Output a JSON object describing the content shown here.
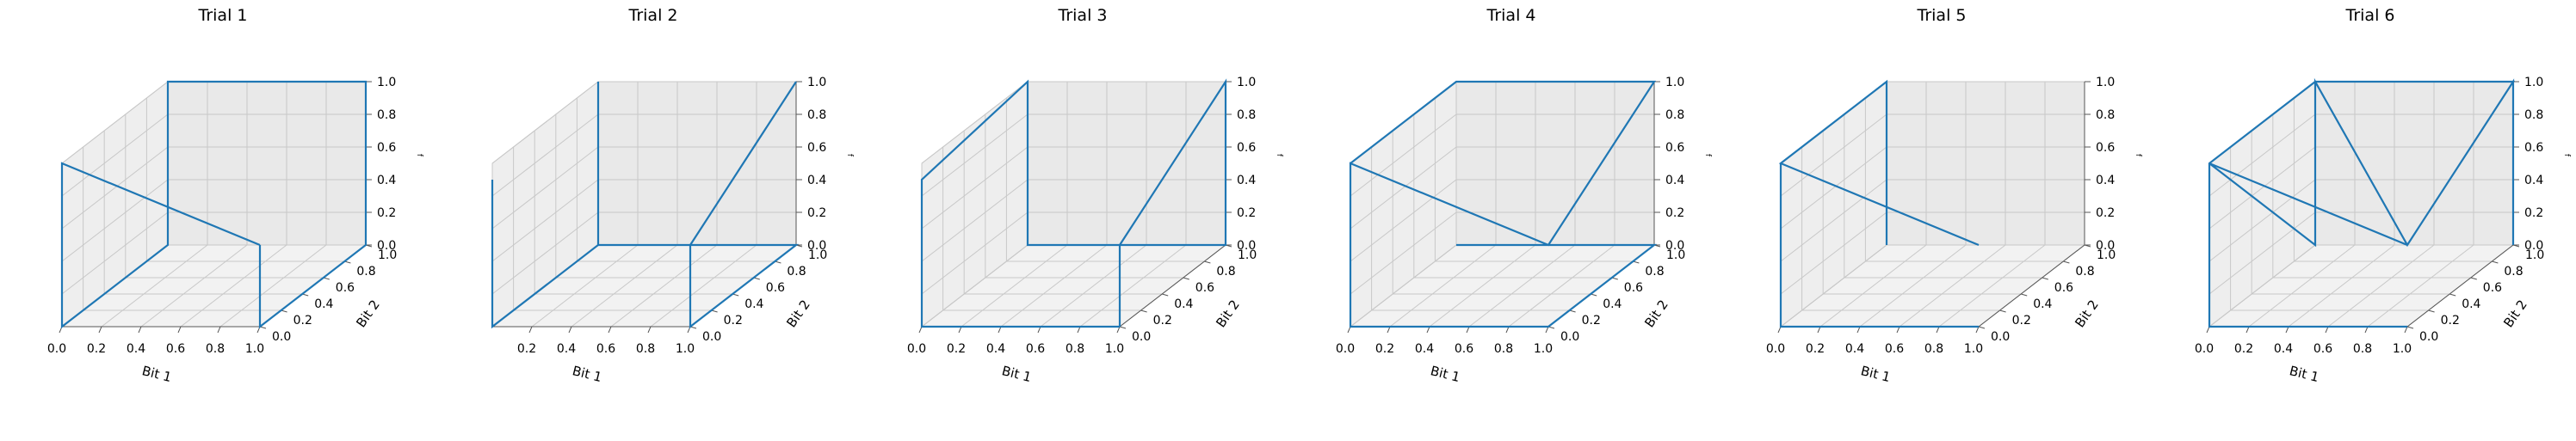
{
  "chart_data": [
    {
      "type": "line3d",
      "title": "Trial 1",
      "xlabel": "Bit 1",
      "ylabel": "Bit 2",
      "zlabel": "f",
      "xlim": [
        0,
        1
      ],
      "ylim": [
        0,
        1
      ],
      "zlim": [
        0,
        1
      ],
      "xticks": [
        "0.0",
        "0.2",
        "0.4",
        "0.6",
        "0.8",
        "1.0"
      ],
      "yticks": [
        "0.0",
        "0.2",
        "0.4",
        "0.6",
        "0.8",
        "1.0"
      ],
      "zticks": [
        "0.0",
        "0.2",
        "0.4",
        "0.6",
        "0.8",
        "1.0"
      ],
      "grid": true,
      "color": "#1f77b4",
      "points": [
        [
          1,
          0,
          0.5
        ],
        [
          1,
          0,
          0
        ],
        [
          1,
          1,
          0
        ],
        [
          1,
          1,
          1
        ],
        [
          0,
          1,
          1
        ],
        [
          0,
          1,
          0
        ],
        [
          0,
          0,
          0
        ],
        [
          0,
          0,
          1
        ],
        [
          1,
          0,
          0.5
        ]
      ]
    },
    {
      "type": "line3d",
      "title": "Trial 2",
      "xlabel": "Bit 1",
      "ylabel": "Bit 2",
      "zlabel": "f",
      "xlim": [
        0,
        1
      ],
      "ylim": [
        0,
        1
      ],
      "zlim": [
        0,
        1
      ],
      "xticks": [
        "0.2",
        "0.4",
        "0.6",
        "0.8",
        "1.0"
      ],
      "yticks": [
        "0.0",
        "0.2",
        "0.4",
        "0.6",
        "0.8",
        "1.0"
      ],
      "zticks": [
        "0.0",
        "0.2",
        "0.4",
        "0.6",
        "0.8",
        "1.0"
      ],
      "grid": true,
      "color": "#1f77b4",
      "points": [
        [
          1,
          1,
          1
        ],
        [
          1,
          0,
          0.5
        ],
        [
          1,
          0,
          0
        ],
        [
          1,
          1,
          0
        ],
        [
          0,
          1,
          0
        ],
        [
          0,
          1,
          1
        ],
        [
          0,
          1,
          0
        ],
        [
          0,
          0,
          0
        ],
        [
          0,
          0,
          0.9
        ]
      ]
    },
    {
      "type": "line3d",
      "title": "Trial 3",
      "xlabel": "Bit 1",
      "ylabel": "Bit 2",
      "zlabel": "f",
      "xlim": [
        0,
        1
      ],
      "ylim": [
        0,
        1
      ],
      "zlim": [
        0,
        1
      ],
      "xticks": [
        "0.0",
        "0.2",
        "0.4",
        "0.6",
        "0.8",
        "1.0"
      ],
      "yticks": [
        "0.0",
        "0.2",
        "0.4",
        "0.6",
        "0.8",
        "1.0"
      ],
      "zticks": [
        "0.0",
        "0.2",
        "0.4",
        "0.6",
        "0.8",
        "1.0"
      ],
      "grid": true,
      "color": "#1f77b4",
      "points": [
        [
          1,
          0,
          0
        ],
        [
          1,
          0,
          0.5
        ],
        [
          1,
          1,
          1
        ],
        [
          1,
          1,
          0
        ],
        [
          0,
          1,
          0
        ],
        [
          0,
          1,
          1
        ],
        [
          0,
          0,
          0.9
        ],
        [
          0,
          0,
          0
        ],
        [
          1,
          0,
          0
        ]
      ]
    },
    {
      "type": "line3d",
      "title": "Trial 4",
      "xlabel": "Bit 1",
      "ylabel": "Bit 2",
      "zlabel": "f",
      "xlim": [
        0,
        1
      ],
      "ylim": [
        0,
        1
      ],
      "zlim": [
        0,
        1
      ],
      "xticks": [
        "0.0",
        "0.2",
        "0.4",
        "0.6",
        "0.8",
        "1.0"
      ],
      "yticks": [
        "0.0",
        "0.2",
        "0.4",
        "0.6",
        "0.8",
        "1.0"
      ],
      "zticks": [
        "0.0",
        "0.2",
        "0.4",
        "0.6",
        "0.8",
        "1.0"
      ],
      "grid": true,
      "color": "#1f77b4",
      "points": [
        [
          1,
          0,
          0
        ],
        [
          0,
          0,
          0
        ],
        [
          0,
          0,
          1
        ],
        [
          1,
          0,
          0.5
        ],
        [
          1,
          1,
          1
        ],
        [
          0,
          1,
          1
        ],
        [
          0,
          0,
          1
        ],
        [
          0,
          0,
          0
        ],
        [
          1,
          0,
          0
        ],
        [
          1,
          1,
          0
        ],
        [
          0,
          1,
          0
        ]
      ]
    },
    {
      "type": "line3d",
      "title": "Trial 5",
      "xlabel": "Bit 1",
      "ylabel": "Bit 2",
      "zlabel": "f",
      "xlim": [
        0,
        1
      ],
      "ylim": [
        0,
        1
      ],
      "zlim": [
        0,
        1
      ],
      "xticks": [
        "0.0",
        "0.2",
        "0.4",
        "0.6",
        "0.8",
        "1.0"
      ],
      "yticks": [
        "0.0",
        "0.2",
        "0.4",
        "0.6",
        "0.8",
        "1.0"
      ],
      "zticks": [
        "0.0",
        "0.2",
        "0.4",
        "0.6",
        "0.8",
        "1.0"
      ],
      "grid": true,
      "color": "#1f77b4",
      "points": [
        [
          1,
          0,
          0.5
        ],
        [
          0,
          0,
          1
        ],
        [
          0,
          1,
          1
        ],
        [
          0,
          1,
          0
        ],
        [
          0,
          1,
          1
        ],
        [
          0,
          0,
          1
        ],
        [
          0,
          0,
          0
        ],
        [
          1,
          0,
          0
        ]
      ]
    },
    {
      "type": "line3d",
      "title": "Trial 6",
      "xlabel": "Bit 1",
      "ylabel": "Bit 2",
      "zlabel": "f",
      "xlim": [
        0,
        1
      ],
      "ylim": [
        0,
        1
      ],
      "zlim": [
        0,
        1
      ],
      "xticks": [
        "0.0",
        "0.2",
        "0.4",
        "0.6",
        "0.8",
        "1.0"
      ],
      "yticks": [
        "0.0",
        "0.2",
        "0.4",
        "0.6",
        "0.8",
        "1.0"
      ],
      "zticks": [
        "0.0",
        "0.2",
        "0.4",
        "0.6",
        "0.8",
        "1.0"
      ],
      "grid": true,
      "color": "#1f77b4",
      "points": [
        [
          1,
          0,
          0
        ],
        [
          0,
          0,
          0
        ],
        [
          0,
          0,
          1
        ],
        [
          0,
          1,
          1
        ],
        [
          1,
          1,
          1
        ],
        [
          1,
          0,
          0.5
        ],
        [
          0,
          0,
          1
        ],
        [
          0,
          1,
          0
        ],
        [
          0,
          1,
          1
        ],
        [
          1,
          0,
          0.5
        ],
        [
          1,
          1,
          1
        ],
        [
          1,
          1,
          0
        ]
      ]
    }
  ]
}
